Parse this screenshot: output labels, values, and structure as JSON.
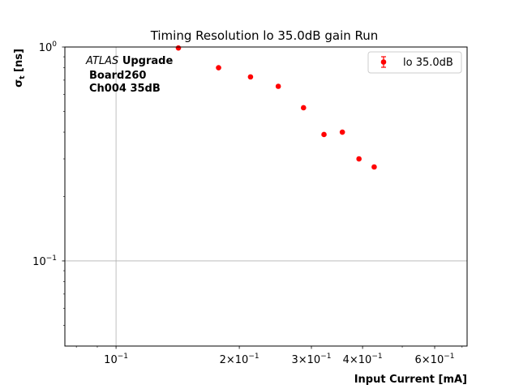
{
  "chart_data": {
    "type": "scatter",
    "title": "Timing Resolution lo 35.0dB gain Run",
    "xlabel": "Input Current [mA]",
    "ylabel_base": "σ",
    "ylabel_sub": "t",
    "ylabel_unit": " [ns]",
    "xscale": "log",
    "yscale": "log",
    "xlim": [
      0.075,
      0.72
    ],
    "ylim": [
      0.04,
      1.0
    ],
    "grid": true,
    "grid_lines": {
      "x": [
        0.1
      ],
      "y": [
        0.1
      ]
    },
    "x_ticks": [
      {
        "value": 0.1,
        "base": "10",
        "sup": "−1"
      },
      {
        "value": 0.2,
        "base": "2×10",
        "sup": "−1"
      },
      {
        "value": 0.3,
        "base": "3×10",
        "sup": "−1"
      },
      {
        "value": 0.4,
        "base": "4×10",
        "sup": "−1"
      },
      {
        "value": 0.6,
        "base": "6×10",
        "sup": "−1"
      }
    ],
    "x_minor_ticks": [
      0.08,
      0.09,
      0.5,
      0.7
    ],
    "y_ticks": [
      {
        "value": 1.0,
        "base": "10",
        "sup": "0"
      },
      {
        "value": 0.1,
        "base": "10",
        "sup": "−1"
      }
    ],
    "y_minor_ticks": [
      0.05,
      0.06,
      0.07,
      0.08,
      0.09,
      0.2,
      0.3,
      0.4,
      0.5,
      0.6,
      0.7,
      0.8,
      0.9
    ],
    "annotation": {
      "atlas": "ATLAS",
      "upgrade": "Upgrade",
      "board": "Board260",
      "channel": "Ch004 35dB"
    },
    "legend": {
      "position": "top-right",
      "entries": [
        "lo 35.0dB"
      ]
    },
    "series": [
      {
        "name": "lo 35.0dB",
        "color": "#ff0000",
        "marker": "circle",
        "x": [
          0.142,
          0.178,
          0.213,
          0.249,
          0.287,
          0.322,
          0.357,
          0.392,
          0.427
        ],
        "y": [
          0.99,
          0.8,
          0.725,
          0.655,
          0.52,
          0.39,
          0.4,
          0.3,
          0.275
        ]
      }
    ]
  }
}
